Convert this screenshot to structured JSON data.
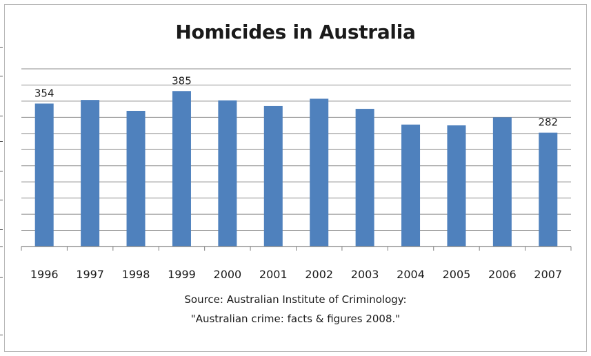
{
  "chart_data": {
    "type": "bar",
    "title": "Homicides in Australia",
    "categories": [
      "1996",
      "1997",
      "1998",
      "1999",
      "2000",
      "2001",
      "2002",
      "2003",
      "2004",
      "2005",
      "2006",
      "2007"
    ],
    "values": [
      354,
      363,
      336,
      385,
      362,
      348,
      366,
      341,
      302,
      300,
      320,
      282
    ],
    "data_labels": [
      {
        "index": 0,
        "text": "354"
      },
      {
        "index": 3,
        "text": "385"
      },
      {
        "index": 11,
        "text": "282"
      }
    ],
    "ylim": [
      0,
      440
    ],
    "grid": true,
    "color": "#4f81bd",
    "xlabel": "",
    "ylabel": ""
  },
  "source": {
    "line1": "Source:  Australian Institute of Criminology:",
    "line2": "\"Australian crime: facts & figures 2008.\""
  }
}
